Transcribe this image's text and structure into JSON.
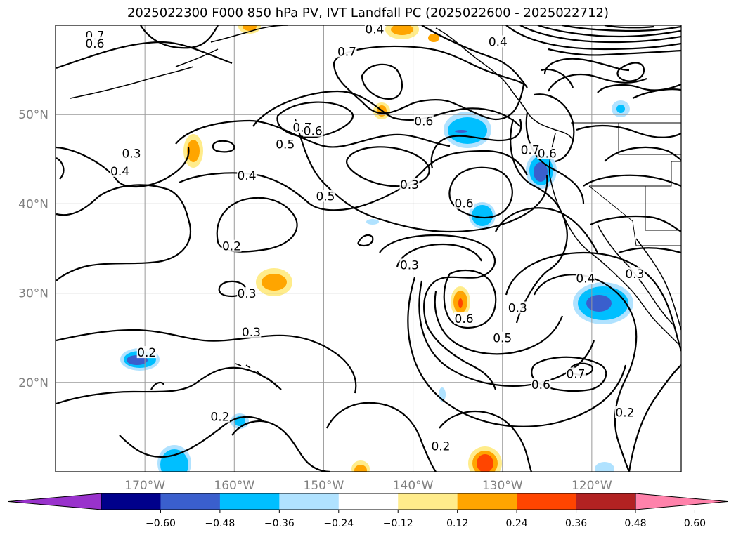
{
  "title": "2025022300 F000 850 hPa PV, IVT Landfall PC (2025022600 - 2025022712)",
  "map": {
    "lat_labels": [
      "50°N",
      "40°N",
      "30°N",
      "20°N"
    ],
    "lon_labels": [
      "170°W",
      "160°W",
      "150°W",
      "140°W",
      "130°W",
      "120°W"
    ],
    "lat_range": [
      10,
      60
    ],
    "lon_range": [
      -180,
      -110
    ],
    "grid": true
  },
  "contour_labels": [
    {
      "text": "0.7",
      "lon": -175.6,
      "lat": 58.7
    },
    {
      "text": "0.6",
      "lon": -175.6,
      "lat": 57.8
    },
    {
      "text": "0.4",
      "lon": -130.5,
      "lat": 58.0
    },
    {
      "text": "0.7",
      "lon": -147.4,
      "lat": 56.9
    },
    {
      "text": "0.4",
      "lon": -144.3,
      "lat": 59.4
    },
    {
      "text": "0.6",
      "lon": -138.8,
      "lat": 49.1
    },
    {
      "text": "0.7",
      "lon": -152.4,
      "lat": 48.4
    },
    {
      "text": "0.6",
      "lon": -151.2,
      "lat": 48.0
    },
    {
      "text": "0.5",
      "lon": -154.3,
      "lat": 46.5
    },
    {
      "text": "0.3",
      "lon": -171.5,
      "lat": 45.5
    },
    {
      "text": "0.4",
      "lon": -172.8,
      "lat": 43.5
    },
    {
      "text": "0.4",
      "lon": -158.6,
      "lat": 43.0
    },
    {
      "text": "0.5",
      "lon": -149.8,
      "lat": 40.7
    },
    {
      "text": "0.3",
      "lon": -140.4,
      "lat": 42.0
    },
    {
      "text": "0.6",
      "lon": -134.3,
      "lat": 39.9
    },
    {
      "text": "0.7",
      "lon": -126.9,
      "lat": 45.9
    },
    {
      "text": "0.6",
      "lon": -125.0,
      "lat": 45.5
    },
    {
      "text": "0.2",
      "lon": -160.3,
      "lat": 35.1
    },
    {
      "text": "0.3",
      "lon": -158.6,
      "lat": 29.8
    },
    {
      "text": "0.3",
      "lon": -140.4,
      "lat": 33.0
    },
    {
      "text": "0.3",
      "lon": -128.3,
      "lat": 28.2
    },
    {
      "text": "0.4",
      "lon": -120.7,
      "lat": 31.5
    },
    {
      "text": "0.3",
      "lon": -115.2,
      "lat": 32.0
    },
    {
      "text": "0.6",
      "lon": -134.3,
      "lat": 27.0
    },
    {
      "text": "0.3",
      "lon": -158.1,
      "lat": 25.5
    },
    {
      "text": "0.5",
      "lon": -130.0,
      "lat": 24.8
    },
    {
      "text": "0.2",
      "lon": -169.8,
      "lat": 23.2
    },
    {
      "text": "0.7",
      "lon": -121.8,
      "lat": 20.8
    },
    {
      "text": "0.6",
      "lon": -125.7,
      "lat": 19.6
    },
    {
      "text": "0.2",
      "lon": -116.3,
      "lat": 16.5
    },
    {
      "text": "0.2",
      "lon": -161.6,
      "lat": 16.0
    },
    {
      "text": "0.2",
      "lon": -136.9,
      "lat": 12.7
    }
  ],
  "colorbar": {
    "ticks": [
      "−0.60",
      "−0.48",
      "−0.36",
      "−0.24",
      "−0.12",
      "0.12",
      "0.24",
      "0.36",
      "0.48",
      "0.60"
    ],
    "colors": [
      "#9932CC",
      "#00008B",
      "#3A5FCD",
      "#00BFFF",
      "#B0E2FF",
      "#FFFFFF",
      "#FFEC8B",
      "#FFA500",
      "#FF4500",
      "#B22222",
      "#FF82AB"
    ]
  }
}
